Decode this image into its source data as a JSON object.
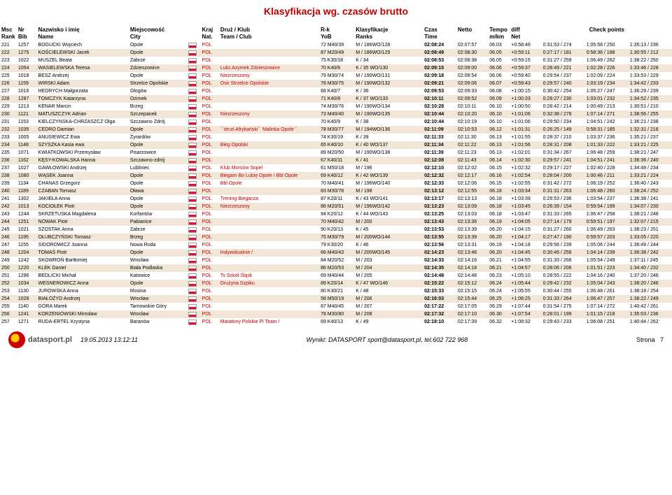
{
  "title": "Klasyfikacja wg. czasów brutto",
  "header": {
    "msc": "Msc",
    "rank": "Rank",
    "nr": "Nr",
    "bib": "Bib",
    "naz": "Nazwisko i imię",
    "name": "Name",
    "city_pl": "Miejscowość",
    "city": "City",
    "kraj": "Kraj",
    "nat": "Nat.",
    "klub": "Druż / Klub",
    "team": "Team / Club",
    "rk": "R-k",
    "yob": "YoB",
    "klass": "Klasyfikacje",
    "ranks": "Ranks",
    "czas": "Czas",
    "time": "Time",
    "netto": "Netto",
    "tempo": "Tempo",
    "mkm": "m/km",
    "diff": "diff",
    "net": "Net",
    "checkpoints": "Check points"
  },
  "rows": [
    {
      "msc": "221",
      "nr": "1257",
      "naz": "BOGUCKI Wojciech",
      "city": "Opole",
      "kraj": "POL",
      "klub": "",
      "rk": "72 M40/39",
      "yob": "M / 186WO/128",
      "ranks": "",
      "czas": "02:08:24",
      "netto": "02:07:57",
      "tempo": "06.03",
      "diff": "+0:58:46",
      "cp1": "0:31:53 / 274",
      "cp2": "1:05:58 / 250",
      "cp3": "1:35:13 / 236"
    },
    {
      "msc": "222",
      "nr": "1275",
      "naz": "KOŚCIELEWSKI Jacek",
      "city": "Opole",
      "kraj": "POL",
      "klub": "",
      "rk": "87 M20/49",
      "yob": "M / 186WO/129",
      "ranks": "",
      "czas": "02:08:49",
      "netto": "02:08:30",
      "tempo": "06.05",
      "diff": "+0:59:11",
      "cp1": "0:27:17 / 181",
      "cp2": "0:58:36 / 188",
      "cp3": "1:30:55 / 212"
    },
    {
      "msc": "223",
      "nr": "1022",
      "naz": "MUSZEL Beata",
      "city": "Zabrze",
      "kraj": "POL",
      "klub": "",
      "rk": "75 K30/18",
      "yob": "K / 34",
      "ranks": "",
      "czas": "02:08:53",
      "netto": "02:08:38",
      "tempo": "06.05",
      "diff": "+0:59:15",
      "cp1": "0:31:27 / 259",
      "cp2": "1:06:49 / 262",
      "cp3": "1:38:22 / 250"
    },
    {
      "msc": "224",
      "nr": "1054",
      "naz": "WASIELEWSKA Teresa",
      "city": "Zdzieszowice",
      "kraj": "POL",
      "klub": "Luks Azymek Zdzieszowice",
      "rk": "70 K40/6",
      "yob": "K / 35  WO/130",
      "ranks": "",
      "czas": "02:09:15",
      "netto": "02:09:00",
      "tempo": "06.06",
      "diff": "+0:59:37",
      "cp1": "0:28:49 / 221",
      "cp2": "1:02:28 / 226",
      "cp3": "1:33:46 / 228"
    },
    {
      "msc": "225",
      "nr": "1018",
      "naz": "BESZ Andrzej",
      "city": "Opole",
      "kraj": "POL",
      "klub": "Niezrzeszony",
      "rk": "79 M30/74",
      "yob": "M / 190WO/131",
      "ranks": "",
      "czas": "02:09:18",
      "netto": "02:08:54",
      "tempo": "06.06",
      "diff": "+0:59:40",
      "cp1": "0:29:54 / 237",
      "cp2": "1:02:09 / 224",
      "cp3": "1:33:53 / 229"
    },
    {
      "msc": "226",
      "nr": "1159",
      "naz": "WIRSKI Adam",
      "city": "Strzelce Opolskie",
      "kraj": "POL",
      "klub": "Osir Strzelce Opolskie",
      "rk": "78 M30/75",
      "yob": "M / 190WO/132",
      "ranks": "",
      "czas": "02:09:21",
      "netto": "02:09:06",
      "tempo": "06.07",
      "diff": "+0:59:43",
      "cp1": "0:29:57 / 240",
      "cp2": "1:03:19 / 234",
      "cp3": "1:34:42 / 233"
    },
    {
      "msc": "227",
      "nr": "1016",
      "naz": "HEDRYCH Małgorzata",
      "city": "Głogów",
      "kraj": "POL",
      "klub": "",
      "rk": "68 K40/7",
      "yob": "K / 36",
      "ranks": "",
      "czas": "02:09:53",
      "netto": "02:09:33",
      "tempo": "06.08",
      "diff": "+1:00:15",
      "cp1": "0:30:42 / 254",
      "cp2": "1:05:27 / 247",
      "cp3": "1:36:29 / 239"
    },
    {
      "msc": "228",
      "nr": "1287",
      "naz": "TOMCZYK Katarzyna",
      "city": "Ozimek",
      "kraj": "POL",
      "klub": "",
      "rk": "71 K40/8",
      "yob": "K / 37  WO/133",
      "ranks": "",
      "czas": "02:10:11",
      "netto": "02:09:52",
      "tempo": "06.09",
      "diff": "+1:00:33",
      "cp1": "0:29:27 / 230",
      "cp2": "1:03:01 / 232",
      "cp3": "1:34:52 / 235"
    },
    {
      "msc": "229",
      "nr": "1213",
      "naz": "KENAR Marcin",
      "city": "Brzeg",
      "kraj": "POL",
      "klub": "",
      "rk": "74 M30/76",
      "yob": "M / 190WO/134",
      "ranks": "",
      "czas": "02:10:28",
      "netto": "02:10:11",
      "tempo": "06.10",
      "diff": "+1:00:50",
      "cp1": "0:28:42 / 214",
      "cp2": "1:00:49 / 213",
      "cp3": "1:30:51 / 210"
    },
    {
      "msc": "230",
      "nr": "1121",
      "naz": "MATUSZCZYK Adrian",
      "city": "Szczepanek",
      "kraj": "POL",
      "klub": "Niezrzeszony",
      "rk": "73 M40/40",
      "yob": "M / 190WO/135",
      "ranks": "",
      "czas": "02:10:44",
      "netto": "02:10:20",
      "tempo": "06.10",
      "diff": "+1:01:06",
      "cp1": "0:32:38 / 278",
      "cp2": "1:07:14 / 271",
      "cp3": "1:38:56 / 255"
    },
    {
      "msc": "231",
      "nr": "1153",
      "naz": "KIELCZYNSKA-CHRZASZCZ Olga",
      "city": "Szczawno Zdrój",
      "kraj": "POL",
      "klub": "",
      "rk": "70 K40/9",
      "yob": "K / 38",
      "ranks": "",
      "czas": "02:10:44",
      "netto": "02:10:19",
      "tempo": "06.10",
      "diff": "+1:01:06",
      "cp1": "0:29:50 / 234",
      "cp2": "1:04:51 / 242",
      "cp3": "1:36:21 / 238"
    },
    {
      "msc": "232",
      "nr": "1035",
      "naz": "CEDRO Damian",
      "city": "Opole",
      "kraj": "POL",
      "klub": "``struś Afrykański`` Malinka Opole``",
      "rk": "78 M30/77",
      "yob": "M / 194WO/136",
      "ranks": "",
      "czas": "02:11:09",
      "netto": "02:10:53",
      "tempo": "06.12",
      "diff": "+1:01:31",
      "cp1": "0:26:25 / 149",
      "cp2": "0:58:31 / 185",
      "cp3": "1:32:31 / 216"
    },
    {
      "msc": "233",
      "nr": "1005",
      "naz": "ANUSIEWICZ Ewa",
      "city": "Żyrardów",
      "kraj": "POL",
      "klub": "",
      "rk": "74 K30/19",
      "yob": "K / 39",
      "ranks": "",
      "czas": "02:11:33",
      "netto": "02:11:30",
      "tempo": "06.13",
      "diff": "+1:01:55",
      "cp1": "0:28:37 / 210",
      "cp2": "1:03:37 / 236",
      "cp3": "1:35:21 / 237"
    },
    {
      "msc": "234",
      "nr": "1148",
      "naz": "SZYSZKA Kasia ewa",
      "city": "Opole",
      "kraj": "POL",
      "klub": "Bieg Opolski",
      "rk": "65 K40/10",
      "yob": "K / 40 WO/137",
      "ranks": "",
      "czas": "02:11:34",
      "netto": "02:11:22",
      "tempo": "06.13",
      "diff": "+1:01:56",
      "cp1": "0:28:31 / 208",
      "cp2": "1:01:33 / 222",
      "cp3": "1:33:21 / 225"
    },
    {
      "msc": "235",
      "nr": "1071",
      "naz": "KWIATKOWSKI Przemysław",
      "city": "Pisarzowice",
      "kraj": "POL",
      "klub": "",
      "rk": "89 M20/50",
      "yob": "M / 190WO/138",
      "ranks": "",
      "czas": "02:11:39",
      "netto": "02:11:23",
      "tempo": "06.13",
      "diff": "+1:02:01",
      "cp1": "0:31:34 / 267",
      "cp2": "1:06:48 / 259",
      "cp3": "1:38:21 / 247"
    },
    {
      "msc": "236",
      "nr": "1162",
      "naz": "KĘSY-KOWALSKA Hanna",
      "city": "Szczawno-zdrój",
      "kraj": "POL",
      "klub": "",
      "rk": "67 K40/11",
      "yob": "K / 41",
      "ranks": "",
      "czas": "02:12:08",
      "netto": "02:11:43",
      "tempo": "06.14",
      "diff": "+1:02:30",
      "cp1": "0:29:57 / 241",
      "cp2": "1:04:51 / 241",
      "cp3": "1:36:36 / 240"
    },
    {
      "msc": "237",
      "nr": "1027",
      "naz": "GAWŁOWSKI Andrzej",
      "city": "Lubliniec",
      "kraj": "POL",
      "klub": "Klub Morsów Sopel",
      "rk": "61 M50/18",
      "yob": "M / 196",
      "ranks": "",
      "czas": "02:12:10",
      "netto": "02:12:02",
      "tempo": "06.15",
      "diff": "+1:02:32",
      "cp1": "0:29:17 / 227",
      "cp2": "1:02:40 / 228",
      "cp3": "1:34:48 / 234"
    },
    {
      "msc": "238",
      "nr": "1080",
      "naz": "WĄSEK Joanna",
      "city": "Opole",
      "kraj": "POL",
      "klub": "Biegam Bo Lubię Opole / Bbl Opole",
      "rk": "69 K40/12",
      "yob": "K / 42 WO/139",
      "ranks": "",
      "czas": "02:12:32",
      "netto": "02:12:17",
      "tempo": "06.16",
      "diff": "+1:02:54",
      "cp1": "0:28:04 / 200",
      "cp2": "1:00:46 / 211",
      "cp3": "1:33:21 / 224"
    },
    {
      "msc": "239",
      "nr": "1134",
      "naz": "CHANAS Grzegorz",
      "city": "Opole",
      "kraj": "POL",
      "klub": "Bbl Opole",
      "rk": "70 M40/41",
      "yob": "M / 196WO/140",
      "ranks": "",
      "czas": "02:12:33",
      "netto": "02:12:06",
      "tempo": "06.15",
      "diff": "+1:02:55",
      "cp1": "0:31:42 / 272",
      "cp2": "1:06:19 / 252",
      "cp3": "1:36:40 / 243"
    },
    {
      "msc": "240",
      "nr": "1189",
      "naz": "CZABAN Tomasz",
      "city": "Oława",
      "kraj": "POL",
      "klub": "",
      "rk": "83 M30/78",
      "yob": "M / 198",
      "ranks": "",
      "czas": "02:13:12",
      "netto": "02:12:55",
      "tempo": "06.18",
      "diff": "+1:03:34",
      "cp1": "0:31:31 / 263",
      "cp2": "1:06:48 / 260",
      "cp3": "1:38:24 / 252"
    },
    {
      "msc": "241",
      "nr": "1302",
      "naz": "JAKIEŁA Anna",
      "city": "Opole",
      "kraj": "POL",
      "klub": "Trening Biegacza",
      "rk": "87 K20/11",
      "yob": "K / 43 WO/141",
      "ranks": "",
      "czas": "02:13:17",
      "netto": "02:13:13",
      "tempo": "06.18",
      "diff": "+1:03:39",
      "cp1": "0:29:53 / 236",
      "cp2": "1:03:54 / 237",
      "cp3": "1:36:38 / 241"
    },
    {
      "msc": "242",
      "nr": "1013",
      "naz": "KOCIOŁEK Piotr",
      "city": "Opole",
      "kraj": "POL",
      "klub": "Niezrzeszony",
      "rk": "86 M20/51",
      "yob": "M / 196WO/142",
      "ranks": "",
      "czas": "02:13:23",
      "netto": "02:13:09",
      "tempo": "06.18",
      "diff": "+1:03:45",
      "cp1": "0:26:39 / 154",
      "cp2": "0:59:54 / 199",
      "cp3": "1:34:07 / 230"
    },
    {
      "msc": "243",
      "nr": "1244",
      "naz": "SKRZETUSKA Magdalena",
      "city": "Korfantów",
      "kraj": "POL",
      "klub": "",
      "rk": "94 K20/12",
      "yob": "K / 44 WO/143",
      "ranks": "",
      "czas": "02:13:25",
      "netto": "02:13:03",
      "tempo": "06.18",
      "diff": "+1:03:47",
      "cp1": "0:31:33 / 265",
      "cp2": "1:06:47 / 258",
      "cp3": "1:38:21 / 248"
    },
    {
      "msc": "244",
      "nr": "1251",
      "naz": "NOWAK Piotr",
      "city": "Pabianice",
      "kraj": "POL",
      "klub": "",
      "rk": "70 M40/42",
      "yob": "M / 200",
      "ranks": "",
      "czas": "02:13:43",
      "netto": "02:13:36",
      "tempo": "06.19",
      "diff": "+1:04:05",
      "cp1": "0:27:14 / 179",
      "cp2": "0:59:51 / 197",
      "cp3": "1:32:07 / 215"
    },
    {
      "msc": "245",
      "nr": "1021",
      "naz": "SZOSTAK Anna",
      "city": "Zabrze",
      "kraj": "POL",
      "klub": "",
      "rk": "90 K20/13",
      "yob": "K / 45",
      "ranks": "",
      "czas": "02:13:53",
      "netto": "02:13:39",
      "tempo": "06.20",
      "diff": "+1:04:15",
      "cp1": "0:31:27 / 260",
      "cp2": "1:06:49 / 263",
      "cp3": "1:38:23 / 251"
    },
    {
      "msc": "246",
      "nr": "1195",
      "naz": "OŁUBCZYŃSKI Tomasz",
      "city": "Brzeg",
      "kraj": "POL",
      "klub": "",
      "rk": "75 M30/79",
      "yob": "M / 200WO/144",
      "ranks": "",
      "czas": "02:13:55",
      "netto": "02:13:39",
      "tempo": "06.20",
      "diff": "+1:04:17",
      "cp1": "0:27:47 / 190",
      "cp2": "0:59:57 / 203",
      "cp3": "1:33:05 / 220"
    },
    {
      "msc": "247",
      "nr": "1155",
      "naz": "SIDOROWICZ Joanna",
      "city": "Nowa Ruda",
      "kraj": "POL",
      "klub": "",
      "rk": "79 K30/20",
      "yob": "K / 46",
      "ranks": "",
      "czas": "02:13:56",
      "netto": "02:13:31",
      "tempo": "06.19",
      "diff": "+1:04:18",
      "cp1": "0:29:56 / 239",
      "cp2": "1:05:06 / 244",
      "cp3": "1:36:49 / 244"
    },
    {
      "msc": "248",
      "nr": "1204",
      "naz": "TOMAŚ Piotr",
      "city": "Opole",
      "kraj": "POL",
      "klub": "Indywidualnie /",
      "rk": "66 M40/43",
      "yob": "M / 200WO/145",
      "ranks": "",
      "czas": "02:14:23",
      "netto": "02:13:46",
      "tempo": "06.20",
      "diff": "+1:04:45",
      "cp1": "0:30:46 / 256",
      "cp2": "1:04:14 / 239",
      "cp3": "1:36:38 / 242"
    },
    {
      "msc": "249",
      "nr": "1242",
      "naz": "SKOWROŃ Bartłomiej",
      "city": "Wrocław",
      "kraj": "POL",
      "klub": "",
      "rk": "84 M20/52",
      "yob": "M / 203",
      "ranks": "",
      "czas": "02:14:33",
      "netto": "02:14:16",
      "tempo": "06.21",
      "diff": "+1:04:55",
      "cp1": "0:31:33 / 266",
      "cp2": "1:05:54 / 249",
      "cp3": "1:37:11 / 245"
    },
    {
      "msc": "250",
      "nr": "1220",
      "naz": "KLEK Daniel",
      "city": "Biała Podlaska",
      "kraj": "POL",
      "klub": "",
      "rk": "86 M20/53",
      "yob": "M / 204",
      "ranks": "",
      "czas": "02:14:35",
      "netto": "02:14:18",
      "tempo": "06.21",
      "diff": "+1:04:57",
      "cp1": "0:28:06 / 206",
      "cp2": "1:01:51 / 223",
      "cp3": "1:34:40 / 232"
    },
    {
      "msc": "251",
      "nr": "1286",
      "naz": "BEDLICKI Michał",
      "city": "Katowice",
      "kraj": "POL",
      "klub": "Ts Sokół Śląsk",
      "rk": "69 M40/44",
      "yob": "M / 205",
      "ranks": "",
      "czas": "02:14:48",
      "netto": "02:14:48",
      "tempo": "06.23",
      "diff": "+1:05:10",
      "cp1": "0:28:55 / 222",
      "cp2": "1:04:16 / 240",
      "cp3": "1:37:20 / 246"
    },
    {
      "msc": "252",
      "nr": "1034",
      "naz": "WESNEROWICZ Anna",
      "city": "Opole",
      "kraj": "POL",
      "klub": "Drużyna Szpiku",
      "rk": "89 K20/14",
      "yob": "K / 47 WO/146",
      "ranks": "",
      "czas": "02:15:22",
      "netto": "02:15:12",
      "tempo": "06.24",
      "diff": "+1:05:44",
      "cp1": "0:29:42 / 232",
      "cp2": "1:05:04 / 243",
      "cp3": "1:38:20 / 246"
    },
    {
      "msc": "253",
      "nr": "1130",
      "naz": "JUROWSKA Anna",
      "city": "Mosina",
      "kraj": "POL",
      "klub": "",
      "rk": "80 K30/21",
      "yob": "K / 48",
      "ranks": "",
      "czas": "02:15:33",
      "netto": "02:15:15",
      "tempo": "06.24",
      "diff": "+1:05:55",
      "cp1": "0:30:44 / 255",
      "cp2": "1:06:48 / 261",
      "cp3": "1:38:18 / 254"
    },
    {
      "msc": "254",
      "nr": "1028",
      "naz": "BIAŁOŻYD Andrzej",
      "city": "Wrocław",
      "kraj": "POL",
      "klub": "",
      "rk": "58 M50/19",
      "yob": "M / 206",
      "ranks": "",
      "czas": "02:16:03",
      "netto": "02:15:44",
      "tempo": "06.25",
      "diff": "+1:06:25",
      "cp1": "0:31:33 / 264",
      "cp2": "1:06:47 / 257",
      "cp3": "1:38:22 / 249"
    },
    {
      "msc": "255",
      "nr": "1140",
      "naz": "GÓRA Marek",
      "city": "Tarnowskie Góry",
      "kraj": "POL",
      "klub": "",
      "rk": "67 M40/45",
      "yob": "M / 207",
      "ranks": "",
      "czas": "02:17:22",
      "netto": "02:17:05",
      "tempo": "06.29",
      "diff": "+1:07:44",
      "cp1": "0:31:54 / 275",
      "cp2": "1:07:14 / 272",
      "cp3": "1:40:42 / 261"
    },
    {
      "msc": "256",
      "nr": "1241",
      "naz": "KORZENIOWSKI Mirosław",
      "city": "Wrocław",
      "kraj": "POL",
      "klub": "",
      "rk": "78 M30/80",
      "yob": "M / 208",
      "ranks": "",
      "czas": "02:17:32",
      "netto": "02:17:10",
      "tempo": "06.30",
      "diff": "+1:07:54",
      "cp1": "0:28:01 / 199",
      "cp2": "1:01:15 / 218",
      "cp3": "1:35:03 / 236"
    },
    {
      "msc": "257",
      "nr": "1271",
      "naz": "RUDA-ERTEL Krystyna",
      "city": "Baranów",
      "kraj": "POL",
      "klub": "Maratony Polskie Pl Team /",
      "rk": "69 K40/13",
      "yob": "K / 49",
      "ranks": "",
      "czas": "02:18:10",
      "netto": "02:17:39",
      "tempo": "06.32",
      "diff": "+1:08:32",
      "cp1": "0:29:43 / 233",
      "cp2": "1:06:08 / 251",
      "cp3": "1:40:44 / 262"
    }
  ],
  "footer": {
    "logo": "datasport.pl",
    "date": "19.05.2013 13:12:11",
    "center": "Wyniki: DATASPORT sport@datasport.pl, tel.602 722 968",
    "page_label": "Strona",
    "page_no": "7"
  },
  "style": {
    "title_color": "#c00000",
    "row_even_bg": "#f2e6d9",
    "row_odd_bg": "#ffffff",
    "header_fontsize": 8,
    "body_fontsize": 7
  }
}
